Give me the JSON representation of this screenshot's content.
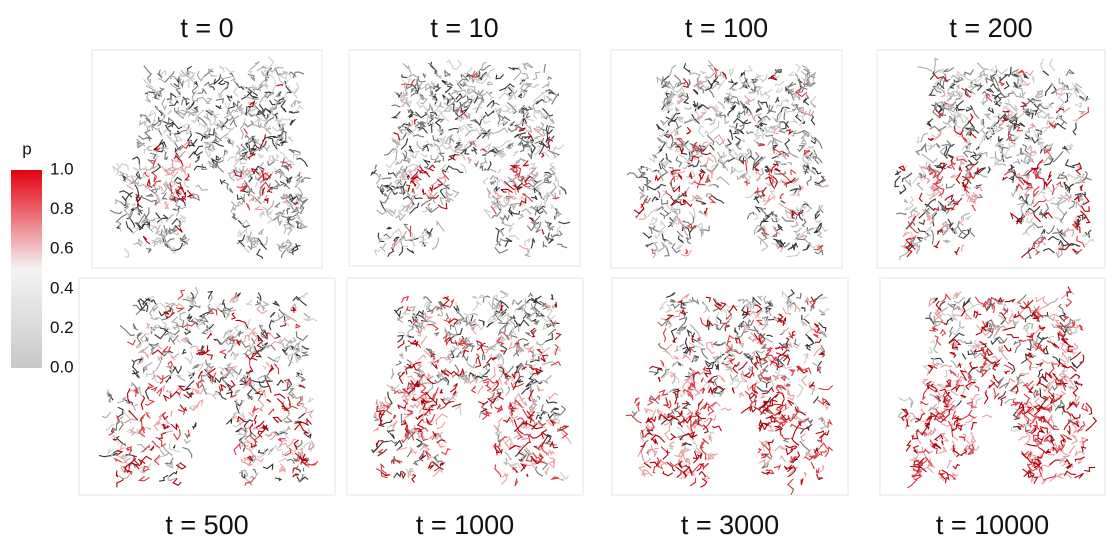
{
  "colorbar": {
    "title": "p",
    "ticks": [
      {
        "value": 1,
        "label": "1.0"
      },
      {
        "value": 0.8,
        "label": "0.8"
      },
      {
        "value": 0.6,
        "label": "0.6"
      },
      {
        "value": 0.4,
        "label": "0.4"
      },
      {
        "value": 0.2,
        "label": "0.2"
      },
      {
        "value": 0,
        "label": "0.0"
      }
    ]
  },
  "panels": [
    {
      "label": "t = 0"
    },
    {
      "label": "t = 10"
    },
    {
      "label": "t = 100"
    },
    {
      "label": "t = 200"
    },
    {
      "label": "t = 500"
    },
    {
      "label": "t = 1000"
    },
    {
      "label": "t = 3000"
    },
    {
      "label": "t = 10000"
    }
  ]
}
